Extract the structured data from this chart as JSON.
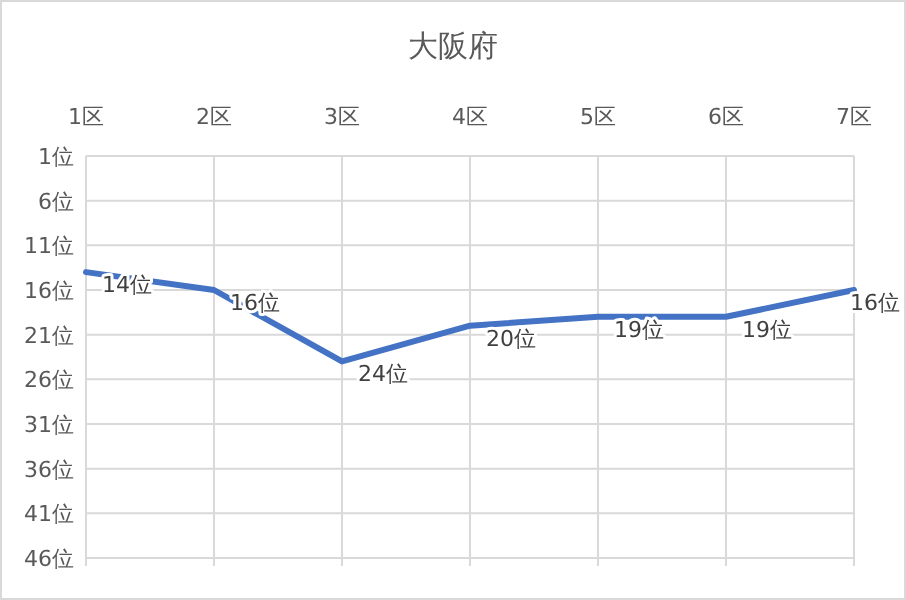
{
  "chart_data": {
    "type": "line",
    "title": "大阪府",
    "categories": [
      "1区",
      "2区",
      "3区",
      "4区",
      "5区",
      "6区",
      "7区"
    ],
    "series": [
      {
        "color": "#4472c4",
        "values": [
          14,
          16,
          24,
          20,
          19,
          19,
          16
        ],
        "value_labels": [
          "14位",
          "16位",
          "24位",
          "20位",
          "19位",
          "19位",
          "16位"
        ]
      }
    ],
    "ylim": [
      46,
      1
    ],
    "yticks": [
      {
        "value": 1,
        "label": "1位"
      },
      {
        "value": 6,
        "label": "6位"
      },
      {
        "value": 11,
        "label": "11位"
      },
      {
        "value": 16,
        "label": "16位"
      },
      {
        "value": 21,
        "label": "21位"
      },
      {
        "value": 26,
        "label": "26位"
      },
      {
        "value": 31,
        "label": "31位"
      },
      {
        "value": 36,
        "label": "36位"
      },
      {
        "value": 41,
        "label": "41位"
      },
      {
        "value": 46,
        "label": "46位"
      }
    ],
    "grid": true,
    "marker": "none",
    "line_style": "solid"
  }
}
